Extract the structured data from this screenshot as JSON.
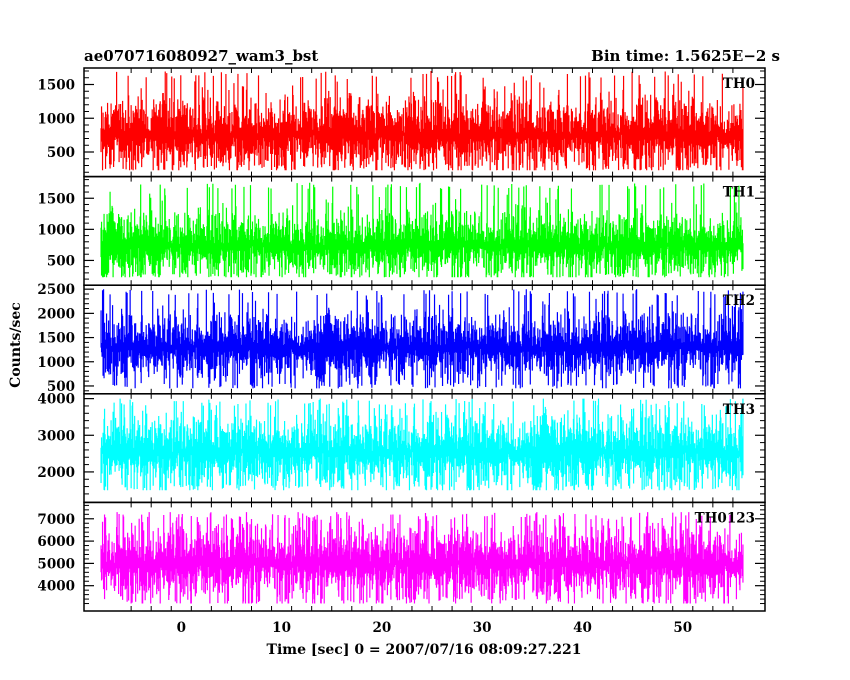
{
  "title_left": "ae070716080927_wam3_bst",
  "title_right": "Bin time: 1.5625E−2 s",
  "xlabel": "Time [sec] 0 = 2007/07/16 08:09:27.221",
  "ylabel": "Counts/sec",
  "chart_data": {
    "type": "line",
    "x_range": [
      -8,
      56
    ],
    "xlim": [
      -9.7,
      58.2
    ],
    "x_ticks": [
      "0",
      "10",
      "20",
      "30",
      "40",
      "50"
    ],
    "x_tick_values": [
      0,
      10,
      20,
      30,
      40,
      50
    ],
    "bin_time_s": 0.015625,
    "panels": [
      {
        "name": "TH0",
        "color": "#ff0000",
        "ylim": [
          180,
          1700
        ],
        "ticks": [
          500,
          1000,
          1500
        ],
        "tick_labels": [
          "500",
          "1000",
          "1500"
        ],
        "mean": 760,
        "sigma": 260,
        "min": 230,
        "max": 1700
      },
      {
        "name": "TH1",
        "color": "#00ff00",
        "ylim": [
          150,
          1800
        ],
        "ticks": [
          500,
          1000,
          1500
        ],
        "tick_labels": [
          "500",
          "1000",
          "1500"
        ],
        "mean": 740,
        "sigma": 250,
        "min": 230,
        "max": 1750
      },
      {
        "name": "TH2",
        "color": "#0000ff",
        "ylim": [
          400,
          2520
        ],
        "ticks": [
          500,
          1000,
          1500,
          2000,
          2500
        ],
        "tick_labels": [
          "500",
          "1000",
          "1500",
          "2000",
          "2500"
        ],
        "mean": 1300,
        "sigma": 320,
        "min": 450,
        "max": 2500
      },
      {
        "name": "TH3",
        "color": "#00ffff",
        "ylim": [
          1250,
          4050
        ],
        "ticks": [
          2000,
          3000,
          4000
        ],
        "tick_labels": [
          "2000",
          "3000",
          "4000"
        ],
        "mean": 2550,
        "sigma": 480,
        "min": 1500,
        "max": 4000
      },
      {
        "name": "TH0123",
        "color": "#ff00ff",
        "ylim": [
          3000,
          7600
        ],
        "ticks": [
          4000,
          5000,
          6000,
          7000
        ],
        "tick_labels": [
          "4000",
          "5000",
          "6000",
          "7000"
        ],
        "mean": 5000,
        "sigma": 800,
        "min": 3200,
        "max": 7300
      }
    ]
  }
}
